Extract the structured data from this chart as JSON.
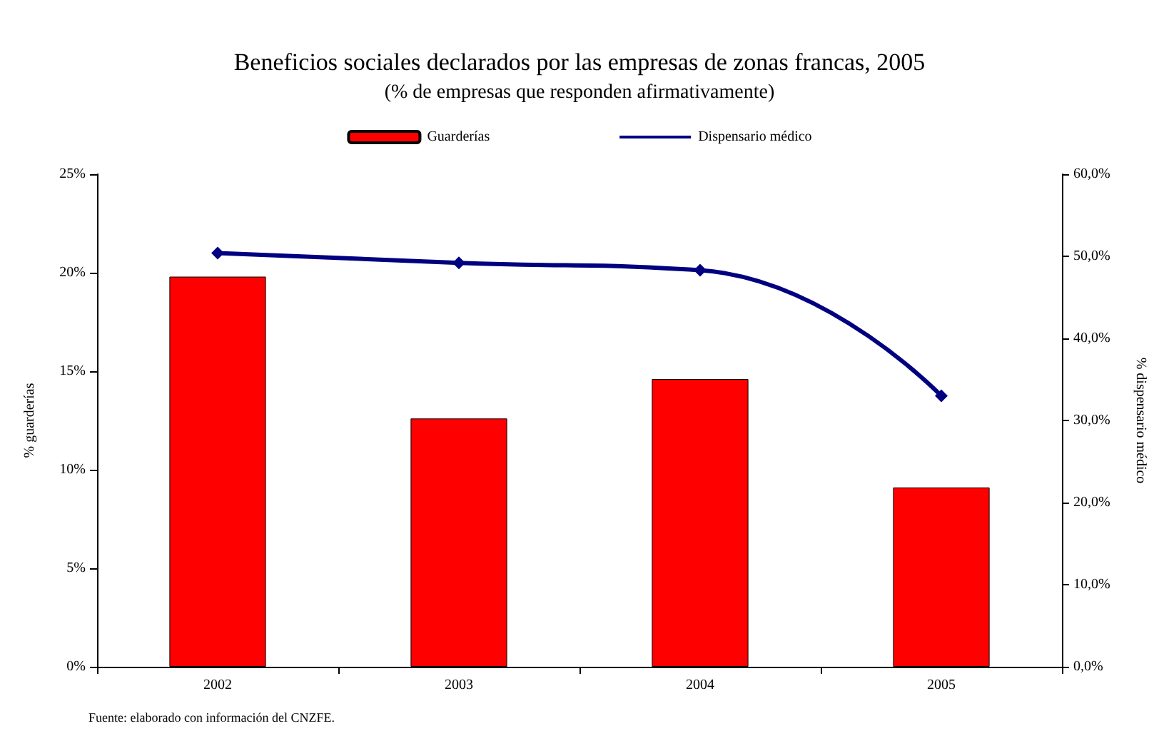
{
  "chart_data": {
    "type": "bar",
    "title": "Beneficios sociales declarados por las empresas de zonas francas, 2005",
    "subtitle": "(% de empresas que responden afirmativamente)",
    "ylabel": "% guarderías",
    "y2label": "% dispensario médico",
    "categories": [
      "2002",
      "2003",
      "2004",
      "2005"
    ],
    "series": [
      {
        "name": "Guarderías",
        "color": "#ff0000",
        "values": [
          19.8,
          12.6,
          14.6,
          9.1
        ]
      },
      {
        "name": "Dispensario médico",
        "type": "line",
        "axis": "y2",
        "color": "#000080",
        "marker": "diamond",
        "values": [
          50.4,
          49.2,
          48.3,
          33.0
        ]
      }
    ],
    "ylim": [
      0,
      25
    ],
    "yticks": [
      {
        "value": 0,
        "label": "0%"
      },
      {
        "value": 5,
        "label": "5%"
      },
      {
        "value": 10,
        "label": "10%"
      },
      {
        "value": 15,
        "label": "15%"
      },
      {
        "value": 20,
        "label": "20%"
      },
      {
        "value": 25,
        "label": "25%"
      }
    ],
    "y2lim": [
      0,
      60
    ],
    "y2ticks": [
      {
        "value": 0,
        "label": "0,0%"
      },
      {
        "value": 10,
        "label": "10,0%"
      },
      {
        "value": 20,
        "label": "20,0%"
      },
      {
        "value": 30,
        "label": "30,0%"
      },
      {
        "value": 40,
        "label": "40,0%"
      },
      {
        "value": 50,
        "label": "50,0%"
      },
      {
        "value": 60,
        "label": "60,0%"
      }
    ],
    "grid": false,
    "legend": "top",
    "annotations": [
      "Fuente: elaborado con información del CNZFE."
    ]
  }
}
